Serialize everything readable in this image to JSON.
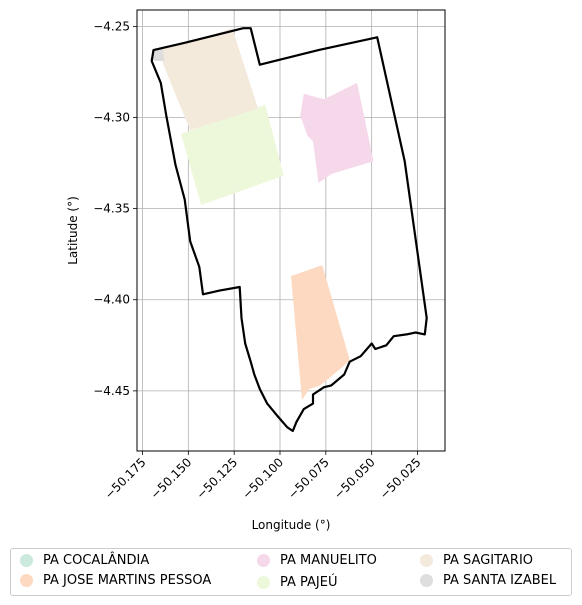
{
  "chart_data": {
    "type": "map",
    "xlabel": "Longitude (°)",
    "ylabel": "Latitude (°)",
    "xlim": [
      -50.178,
      -50.01
    ],
    "ylim": [
      -4.483,
      -4.241
    ],
    "grid": true,
    "x_ticks": [
      {
        "value": -50.175,
        "label": "−50.175"
      },
      {
        "value": -50.15,
        "label": "−50.150"
      },
      {
        "value": -50.125,
        "label": "−50.125"
      },
      {
        "value": -50.1,
        "label": "−50.100"
      },
      {
        "value": -50.075,
        "label": "−50.075"
      },
      {
        "value": -50.05,
        "label": "−50.050"
      },
      {
        "value": -50.025,
        "label": "−50.025"
      }
    ],
    "y_ticks": [
      {
        "value": -4.25,
        "label": "−4.25"
      },
      {
        "value": -4.3,
        "label": "−4.30"
      },
      {
        "value": -4.35,
        "label": "−4.35"
      },
      {
        "value": -4.4,
        "label": "−4.40"
      },
      {
        "value": -4.45,
        "label": "−4.45"
      }
    ],
    "legend_position": "below",
    "series": [
      {
        "name": "PA COCALÂNDIA",
        "color": "#cbe9dc",
        "polygons": []
      },
      {
        "name": "PA JOSE MARTINS PESSOA",
        "color": "#fcd9c0",
        "polygons": [
          [
            [
              -50.094,
              -4.387
            ],
            [
              -50.077,
              -4.381
            ],
            [
              -50.062,
              -4.433
            ],
            [
              -50.066,
              -4.437
            ],
            [
              -50.078,
              -4.447
            ],
            [
              -50.084,
              -4.449
            ],
            [
              -50.088,
              -4.455
            ]
          ]
        ]
      },
      {
        "name": "PA MANUELITO",
        "color": "#f5d8ea",
        "polygons": [
          [
            [
              -50.087,
              -4.287
            ],
            [
              -50.076,
              -4.29
            ],
            [
              -50.058,
              -4.281
            ],
            [
              -50.055,
              -4.295
            ],
            [
              -50.049,
              -4.324
            ],
            [
              -50.072,
              -4.331
            ],
            [
              -50.079,
              -4.336
            ],
            [
              -50.082,
              -4.313
            ],
            [
              -50.085,
              -4.31
            ],
            [
              -50.089,
              -4.299
            ]
          ]
        ]
      },
      {
        "name": "PA PAJEÚ",
        "color": "#ecf8d9",
        "polygons": [
          [
            [
              -50.154,
              -4.309
            ],
            [
              -50.108,
              -4.293
            ],
            [
              -50.098,
              -4.332
            ],
            [
              -50.143,
              -4.348
            ]
          ]
        ]
      },
      {
        "name": "PA SAGITARIO",
        "color": "#f4eadc",
        "polygons": [
          [
            [
              -50.164,
              -4.261
            ],
            [
              -50.15,
              -4.259
            ],
            [
              -50.126,
              -4.251
            ],
            [
              -50.112,
              -4.295
            ],
            [
              -50.149,
              -4.307
            ],
            [
              -50.158,
              -4.285
            ],
            [
              -50.164,
              -4.27
            ]
          ]
        ]
      },
      {
        "name": "PA SANTA IZABEL",
        "color": "#dedede",
        "polygons": [
          [
            [
              -50.17,
              -4.263
            ],
            [
              -50.164,
              -4.262
            ],
            [
              -50.163,
              -4.269
            ],
            [
              -50.169,
              -4.269
            ]
          ]
        ]
      }
    ],
    "boundary": [
      [
        -50.169,
        -4.263
      ],
      [
        -50.152,
        -4.259
      ],
      [
        -50.12,
        -4.251
      ],
      [
        -50.116,
        -4.251
      ],
      [
        -50.111,
        -4.271
      ],
      [
        -50.079,
        -4.263
      ],
      [
        -50.047,
        -4.256
      ],
      [
        -50.032,
        -4.324
      ],
      [
        -50.02,
        -4.41
      ],
      [
        -50.021,
        -4.419
      ],
      [
        -50.026,
        -4.418
      ],
      [
        -50.031,
        -4.419
      ],
      [
        -50.038,
        -4.42
      ],
      [
        -50.042,
        -4.425
      ],
      [
        -50.048,
        -4.427
      ],
      [
        -50.05,
        -4.424
      ],
      [
        -50.056,
        -4.431
      ],
      [
        -50.062,
        -4.434
      ],
      [
        -50.065,
        -4.441
      ],
      [
        -50.072,
        -4.447
      ],
      [
        -50.076,
        -4.448
      ],
      [
        -50.082,
        -4.452
      ],
      [
        -50.082,
        -4.457
      ],
      [
        -50.087,
        -4.46
      ],
      [
        -50.091,
        -4.467
      ],
      [
        -50.093,
        -4.472
      ],
      [
        -50.096,
        -4.47
      ],
      [
        -50.102,
        -4.463
      ],
      [
        -50.107,
        -4.457
      ],
      [
        -50.111,
        -4.449
      ],
      [
        -50.114,
        -4.441
      ],
      [
        -50.116,
        -4.434
      ],
      [
        -50.119,
        -4.424
      ],
      [
        -50.121,
        -4.41
      ],
      [
        -50.122,
        -4.393
      ],
      [
        -50.133,
        -4.395
      ],
      [
        -50.142,
        -4.397
      ],
      [
        -50.144,
        -4.382
      ],
      [
        -50.149,
        -4.368
      ],
      [
        -50.152,
        -4.345
      ],
      [
        -50.157,
        -4.326
      ],
      [
        -50.162,
        -4.299
      ],
      [
        -50.165,
        -4.281
      ],
      [
        -50.17,
        -4.269
      ]
    ]
  },
  "legend": {
    "items": [
      {
        "label": "PA COCALÂNDIA",
        "color": "#cbe9dc"
      },
      {
        "label": "PA JOSE MARTINS PESSOA",
        "color": "#fcd9c0"
      },
      {
        "label": "PA MANUELITO",
        "color": "#f5d8ea"
      },
      {
        "label": "PA PAJEÚ",
        "color": "#ecf8d9"
      },
      {
        "label": "PA SAGITARIO",
        "color": "#f4eadc"
      },
      {
        "label": "PA SANTA IZABEL",
        "color": "#dedede"
      }
    ]
  }
}
